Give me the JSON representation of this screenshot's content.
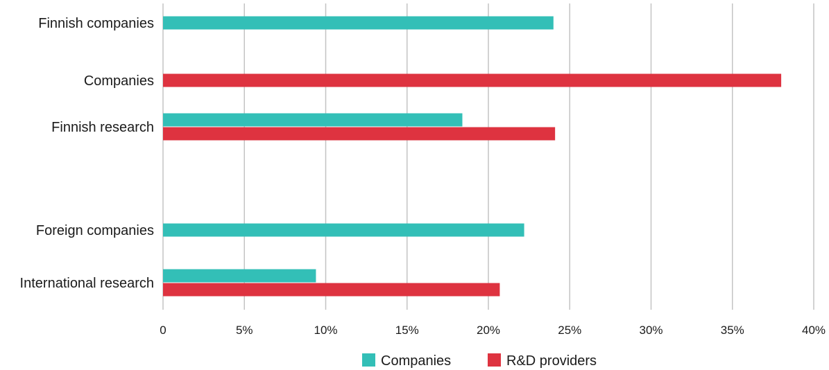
{
  "chart_data": {
    "type": "bar",
    "orientation": "horizontal",
    "categories": [
      "Finnish companies",
      "Companies",
      "Finnish research",
      "Foreign companies",
      "International research"
    ],
    "series": [
      {
        "name": "Companies",
        "color": "#33bfb7",
        "values": [
          24.0,
          null,
          18.4,
          22.2,
          9.4
        ]
      },
      {
        "name": "R&D providers",
        "color": "#de3340",
        "values": [
          null,
          38.0,
          24.1,
          null,
          20.7
        ]
      }
    ],
    "xlim": [
      0,
      40
    ],
    "xticks": [
      0,
      5,
      10,
      15,
      20,
      25,
      30,
      35,
      40
    ],
    "xtick_labels": [
      "0",
      "5%",
      "10%",
      "15%",
      "20%",
      "25%",
      "30%",
      "35%",
      "40%"
    ],
    "grid": "vertical",
    "legend": "bottom-center",
    "title": "",
    "xlabel": "",
    "ylabel": ""
  }
}
